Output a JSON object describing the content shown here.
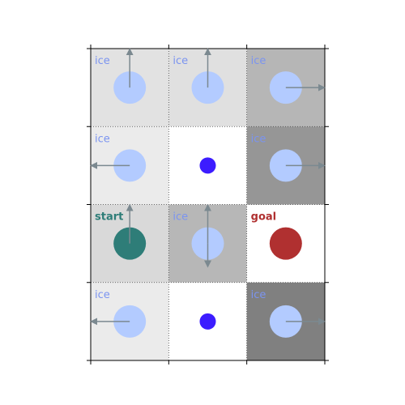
{
  "grid": {
    "rows": 4,
    "cols": 3
  },
  "colors": {
    "ice_label": "#7b94f0",
    "start_label": "#2e7d78",
    "goal_label": "#b03030",
    "ice_circle": "#b3cbff",
    "start_circle": "#2e7d78",
    "goal_circle": "#b03030",
    "hole_circle": "#3c1cff",
    "arrow": "#7b8990"
  },
  "cells": [
    {
      "id": "r0c0",
      "row": 0,
      "col": 0,
      "kind": "ice",
      "label": "ice",
      "shade": "#e2e2e2",
      "arrows": [
        "up"
      ]
    },
    {
      "id": "r0c1",
      "row": 0,
      "col": 1,
      "kind": "ice",
      "label": "ice",
      "shade": "#e0e0e0",
      "arrows": [
        "up"
      ]
    },
    {
      "id": "r0c2",
      "row": 0,
      "col": 2,
      "kind": "ice",
      "label": "ice",
      "shade": "#b6b6b6",
      "arrows": [
        "right"
      ]
    },
    {
      "id": "r1c0",
      "row": 1,
      "col": 0,
      "kind": "ice",
      "label": "ice",
      "shade": "#ebebeb",
      "arrows": [
        "left"
      ]
    },
    {
      "id": "r1c1",
      "row": 1,
      "col": 1,
      "kind": "hole",
      "label": "",
      "shade": "#ffffff",
      "arrows": []
    },
    {
      "id": "r1c2",
      "row": 1,
      "col": 2,
      "kind": "ice",
      "label": "ice",
      "shade": "#969696",
      "arrows": [
        "right"
      ]
    },
    {
      "id": "r2c0",
      "row": 2,
      "col": 0,
      "kind": "start",
      "label": "start",
      "shade": "#d9d9d9",
      "arrows": [
        "up"
      ]
    },
    {
      "id": "r2c1",
      "row": 2,
      "col": 1,
      "kind": "ice",
      "label": "ice",
      "shade": "#b7b7b7",
      "arrows": [
        "up",
        "down"
      ]
    },
    {
      "id": "r2c2",
      "row": 2,
      "col": 2,
      "kind": "goal",
      "label": "goal",
      "shade": "#ffffff",
      "arrows": []
    },
    {
      "id": "r3c0",
      "row": 3,
      "col": 0,
      "kind": "ice",
      "label": "ice",
      "shade": "#ebebeb",
      "arrows": [
        "left"
      ]
    },
    {
      "id": "r3c1",
      "row": 3,
      "col": 1,
      "kind": "hole",
      "label": "",
      "shade": "#ffffff",
      "arrows": []
    },
    {
      "id": "r3c2",
      "row": 3,
      "col": 2,
      "kind": "ice",
      "label": "ice",
      "shade": "#808080",
      "arrows": [
        "right"
      ]
    }
  ]
}
